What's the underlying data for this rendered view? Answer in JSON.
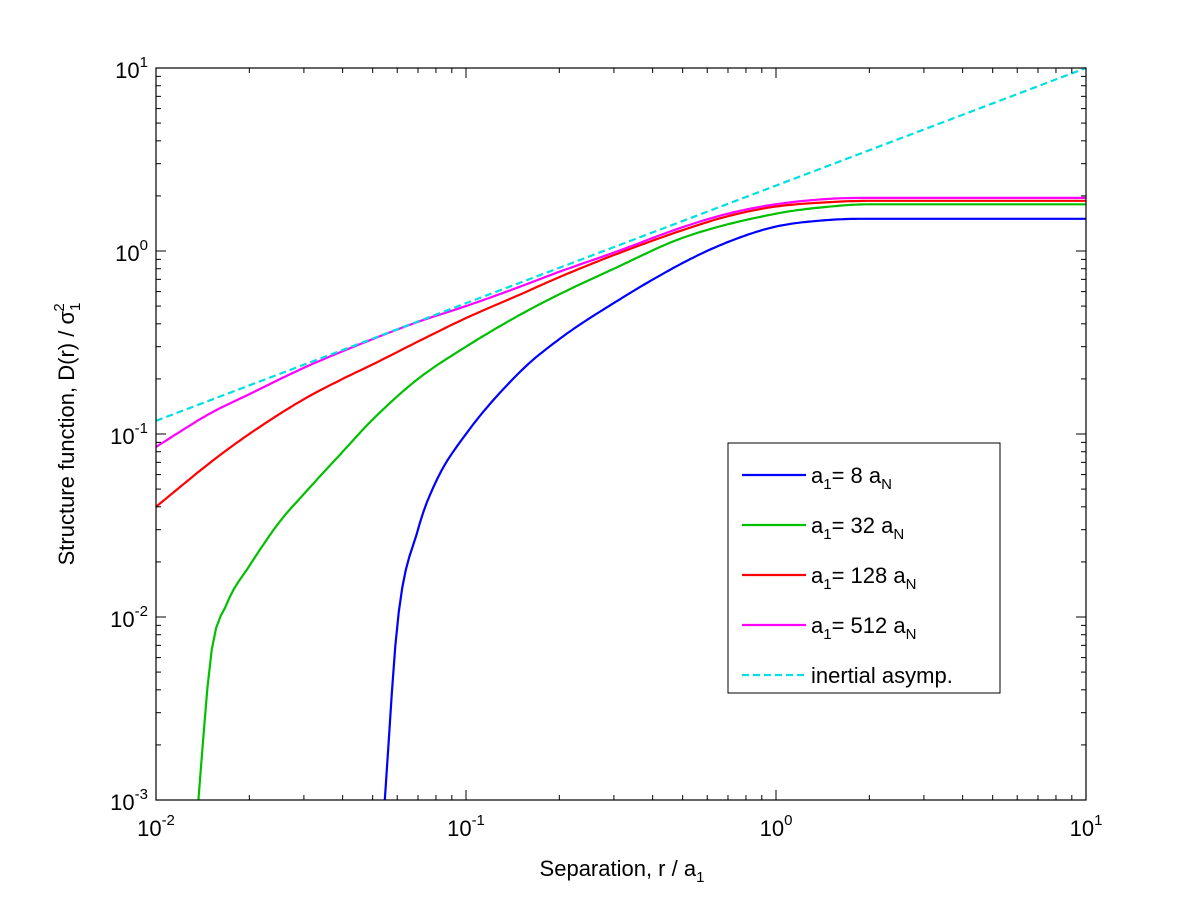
{
  "chart_data": {
    "type": "line",
    "xscale": "log",
    "yscale": "log",
    "xlim": [
      0.01,
      10
    ],
    "ylim": [
      0.001,
      10
    ],
    "xlabel": {
      "main": "Separation, r / a",
      "sub": "1"
    },
    "ylabel": {
      "main": "Structure function, D(r) / σ",
      "sub": "1",
      "sup": "2"
    },
    "xticks": [
      {
        "base": "10",
        "exp": "-2"
      },
      {
        "base": "10",
        "exp": "-1"
      },
      {
        "base": "10",
        "exp": "0"
      },
      {
        "base": "10",
        "exp": "1"
      }
    ],
    "yticks": [
      {
        "base": "10",
        "exp": "-3"
      },
      {
        "base": "10",
        "exp": "-2"
      },
      {
        "base": "10",
        "exp": "-1"
      },
      {
        "base": "10",
        "exp": "0"
      },
      {
        "base": "10",
        "exp": "1"
      }
    ],
    "grid": false,
    "legend_position": "right-center",
    "series": [
      {
        "legend": {
          "a": "a",
          "sub1": "1",
          "rest": "= 8 a",
          "sub2": "N"
        },
        "color": "#0000ff",
        "style": "solid",
        "x": [
          0.0547,
          0.06,
          0.07,
          0.08,
          0.1,
          0.15,
          0.2,
          0.3,
          0.5,
          0.7,
          1.0,
          1.5,
          2,
          5,
          10
        ],
        "y": [
          0.001,
          0.009,
          0.03,
          0.055,
          0.1,
          0.22,
          0.33,
          0.52,
          0.86,
          1.12,
          1.36,
          1.48,
          1.5,
          1.5,
          1.5
        ]
      },
      {
        "legend": {
          "a": "a",
          "sub1": "1",
          "rest": "= 32 a",
          "sub2": "N"
        },
        "color": "#00c000",
        "style": "solid",
        "x": [
          0.0137,
          0.015,
          0.017,
          0.02,
          0.025,
          0.03,
          0.04,
          0.05,
          0.07,
          0.1,
          0.15,
          0.2,
          0.3,
          0.5,
          1.0,
          1.5,
          2,
          5,
          10
        ],
        "y": [
          0.001,
          0.006,
          0.012,
          0.019,
          0.033,
          0.047,
          0.08,
          0.12,
          0.2,
          0.3,
          0.45,
          0.58,
          0.8,
          1.18,
          1.6,
          1.75,
          1.8,
          1.8,
          1.8
        ]
      },
      {
        "legend": {
          "a": "a",
          "sub1": "1",
          "rest": "= 128 a",
          "sub2": "N"
        },
        "color": "#ff0000",
        "style": "solid",
        "x": [
          0.01,
          0.015,
          0.02,
          0.03,
          0.04,
          0.05,
          0.07,
          0.1,
          0.15,
          0.2,
          0.3,
          0.5,
          0.7,
          1.0,
          1.5,
          2,
          5,
          10
        ],
        "y": [
          0.04,
          0.07,
          0.1,
          0.155,
          0.2,
          0.24,
          0.32,
          0.43,
          0.58,
          0.72,
          0.95,
          1.3,
          1.55,
          1.75,
          1.85,
          1.88,
          1.88,
          1.88
        ]
      },
      {
        "legend": {
          "a": "a",
          "sub1": "1",
          "rest": "= 512 a",
          "sub2": "N"
        },
        "color": "#ff00ff",
        "style": "solid",
        "x": [
          0.01,
          0.015,
          0.02,
          0.03,
          0.05,
          0.07,
          0.1,
          0.15,
          0.2,
          0.3,
          0.5,
          0.7,
          1.0,
          1.5,
          2,
          5,
          10
        ],
        "y": [
          0.085,
          0.13,
          0.165,
          0.23,
          0.33,
          0.41,
          0.5,
          0.64,
          0.77,
          0.98,
          1.35,
          1.6,
          1.8,
          1.93,
          1.95,
          1.95,
          1.95
        ]
      },
      {
        "legend": {
          "a": "",
          "sub1": "",
          "rest": "inertial asymp.",
          "sub2": ""
        },
        "color": "#00e0e0",
        "style": "dashed",
        "x": [
          0.01,
          10
        ],
        "y": [
          0.118,
          10.5
        ]
      }
    ]
  }
}
